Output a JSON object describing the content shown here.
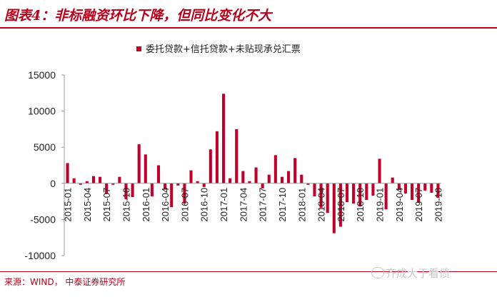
{
  "figure": {
    "title": "图表4：非标融资环比下降，但同比变化不大",
    "source": "来源：WIND， 中泰证券研究所",
    "watermark": "齐成大于看债"
  },
  "chart_data": {
    "type": "bar",
    "title": "",
    "xlabel": "",
    "ylabel": "",
    "ylim": [
      -10000,
      15000
    ],
    "yticks": [
      -10000,
      -5000,
      0,
      5000,
      10000,
      15000
    ],
    "ytick_labels": [
      "-10000",
      "-5000",
      "0",
      "5000",
      "10000",
      "15000"
    ],
    "grid": false,
    "legend_position": "top",
    "bar_color": "#c0002a",
    "categories": [
      "2015-01",
      "2015-02",
      "2015-03",
      "2015-04",
      "2015-05",
      "2015-06",
      "2015-07",
      "2015-08",
      "2015-09",
      "2015-10",
      "2015-11",
      "2015-12",
      "2016-01",
      "2016-02",
      "2016-03",
      "2016-04",
      "2016-05",
      "2016-06",
      "2016-07",
      "2016-08",
      "2016-09",
      "2016-10",
      "2016-11",
      "2016-12",
      "2017-01",
      "2017-02",
      "2017-03",
      "2017-04",
      "2017-05",
      "2017-06",
      "2017-07",
      "2017-08",
      "2017-09",
      "2017-10",
      "2017-11",
      "2017-12",
      "2018-01",
      "2018-02",
      "2018-03",
      "2018-04",
      "2018-05",
      "2018-06",
      "2018-07",
      "2018-08",
      "2018-09",
      "2018-10",
      "2018-11",
      "2018-12",
      "2019-01",
      "2019-02",
      "2019-03",
      "2019-04",
      "2019-05",
      "2019-06",
      "2019-07",
      "2019-08",
      "2019-09",
      "2019-10"
    ],
    "tick_labels": [
      "2015-01",
      "2015-04",
      "2015-07",
      "2015-10",
      "2016-01",
      "2016-04",
      "2016-07",
      "2016-10",
      "2017-01",
      "2017-04",
      "2017-07",
      "2017-10",
      "2018-01",
      "2018-04",
      "2018-07",
      "2018-10",
      "2019-01",
      "2019-04",
      "2019-07",
      "2019-10"
    ],
    "series": [
      {
        "name": "委托贷款+信托贷款+未贴现承兑汇票",
        "values": [
          2800,
          700,
          -200,
          300,
          1000,
          900,
          -1400,
          -200,
          900,
          -2200,
          -1900,
          5400,
          4000,
          -1800,
          2500,
          -800,
          -3300,
          -300,
          -2800,
          1800,
          300,
          -500,
          4700,
          7200,
          12400,
          700,
          7500,
          1700,
          300,
          2200,
          -700,
          1200,
          3900,
          900,
          1700,
          3500,
          1200,
          -200,
          -1800,
          -3400,
          -4100,
          -6900,
          -6000,
          -2600,
          -2800,
          -3200,
          -2300,
          -1700,
          3400,
          -3600,
          800,
          -900,
          -1400,
          -2300,
          -2700,
          -1000,
          -1300,
          -2000
        ]
      }
    ]
  }
}
